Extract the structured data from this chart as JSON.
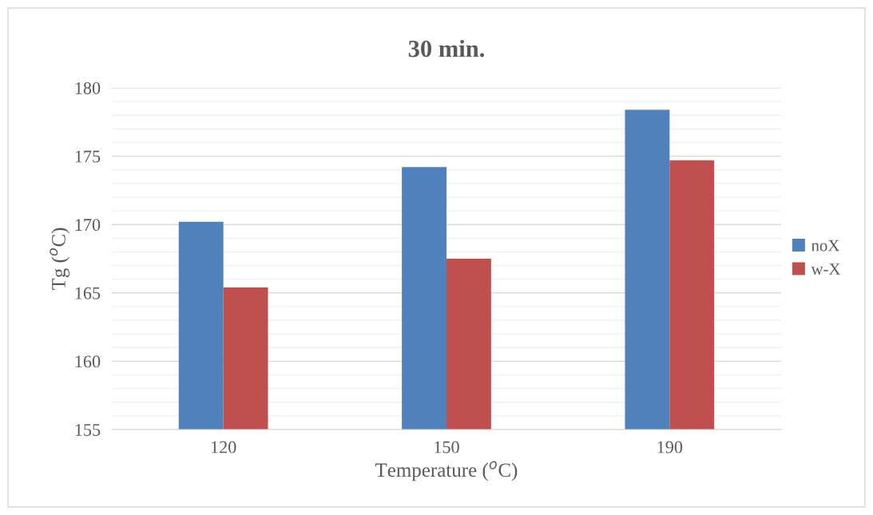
{
  "chart_data": {
    "type": "bar",
    "title": "30 min.",
    "xlabel": "Temperature ($^{o}$C)",
    "ylabel": "Tg ($^{o}$C)",
    "categories": [
      "120",
      "150",
      "190"
    ],
    "series": [
      {
        "name": "noX",
        "color": "#4f81bd",
        "values": [
          170.2,
          174.2,
          178.4
        ]
      },
      {
        "name": "w-X",
        "color": "#c0504d",
        "values": [
          165.4,
          167.5,
          174.7
        ]
      }
    ],
    "ylim": [
      155,
      180
    ],
    "yticks": [
      155,
      {
        "value": 156,
        "label": null
      },
      {
        "value": 157,
        "label": null
      },
      {
        "value": 158,
        "label": null
      },
      {
        "value": 159,
        "label": null
      },
      160,
      {
        "value": 161,
        "label": null
      },
      {
        "value": 162,
        "label": null
      },
      {
        "value": 163,
        "label": null
      },
      {
        "value": 164,
        "label": null
      },
      165,
      {
        "value": 166,
        "label": null
      },
      {
        "value": 167,
        "label": null
      },
      {
        "value": 168,
        "label": null
      },
      {
        "value": 169,
        "label": null
      },
      170,
      {
        "value": 171,
        "label": null
      },
      {
        "value": 172,
        "label": null
      },
      {
        "value": 173,
        "label": null
      },
      {
        "value": 174,
        "label": null
      },
      175,
      {
        "value": 176,
        "label": null
      },
      {
        "value": 177,
        "label": null
      },
      {
        "value": 178,
        "label": null
      },
      {
        "value": 179,
        "label": null
      },
      180
    ],
    "grid": "y",
    "legend": "right"
  }
}
